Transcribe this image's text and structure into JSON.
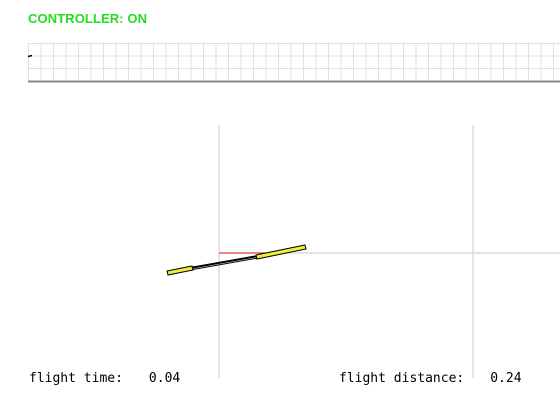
{
  "controller": {
    "status_text": "CONTROLLER: ON",
    "status_color": "#22dd22"
  },
  "trace_plot": {
    "grid": true,
    "grid_color": "#e0e0e0",
    "axis_color": "#888888"
  },
  "scene": {
    "grid_line_color": "#dcdcdc",
    "wing_color": "#f2ea3c",
    "wing_outline_color": "#000000",
    "target_line_color": "#e02020"
  },
  "readouts": {
    "flight_time": {
      "label": "flight time:",
      "value": "0.04"
    },
    "flight_distance": {
      "label": "flight distance:",
      "value": "0.24"
    }
  }
}
